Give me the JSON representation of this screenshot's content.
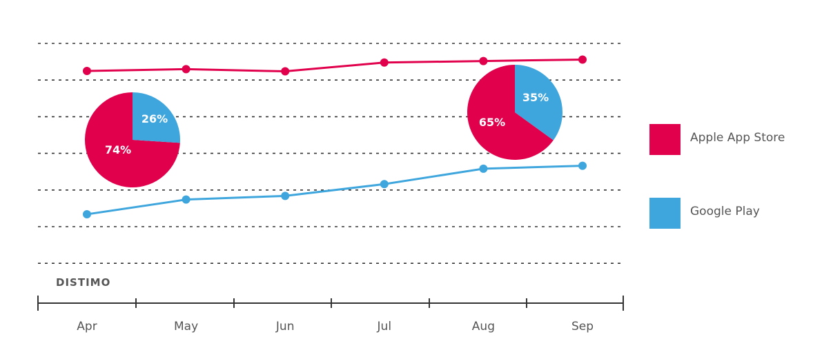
{
  "brand": "DISTIMO",
  "colors": {
    "apple": "#e0004b",
    "google": "#3ea6dd",
    "grid": "#333333",
    "axis": "#333333",
    "text": "#555555",
    "pie_label": "#ffffff"
  },
  "chart_data": {
    "type": "line",
    "categories": [
      "Apr",
      "May",
      "Jun",
      "Jul",
      "Aug",
      "Sep"
    ],
    "ylim": [
      0,
      6
    ],
    "gridlines": 7,
    "grid": true,
    "legend_position": "right",
    "series": [
      {
        "name": "Apple App Store",
        "color": "#e0004b",
        "values": [
          5.25,
          5.3,
          5.24,
          5.48,
          5.52,
          5.56
        ]
      },
      {
        "name": "Google Play",
        "color": "#3ea6dd",
        "values": [
          1.35,
          1.75,
          1.85,
          2.17,
          2.59,
          2.67
        ]
      }
    ],
    "pies": [
      {
        "month": "Apr",
        "slices": [
          {
            "name": "Apple App Store",
            "value": 74,
            "label": "74%"
          },
          {
            "name": "Google Play",
            "value": 26,
            "label": "26%"
          }
        ]
      },
      {
        "month": "Sep",
        "slices": [
          {
            "name": "Apple App Store",
            "value": 65,
            "label": "65%"
          },
          {
            "name": "Google Play",
            "value": 35,
            "label": "35%"
          }
        ]
      }
    ]
  }
}
